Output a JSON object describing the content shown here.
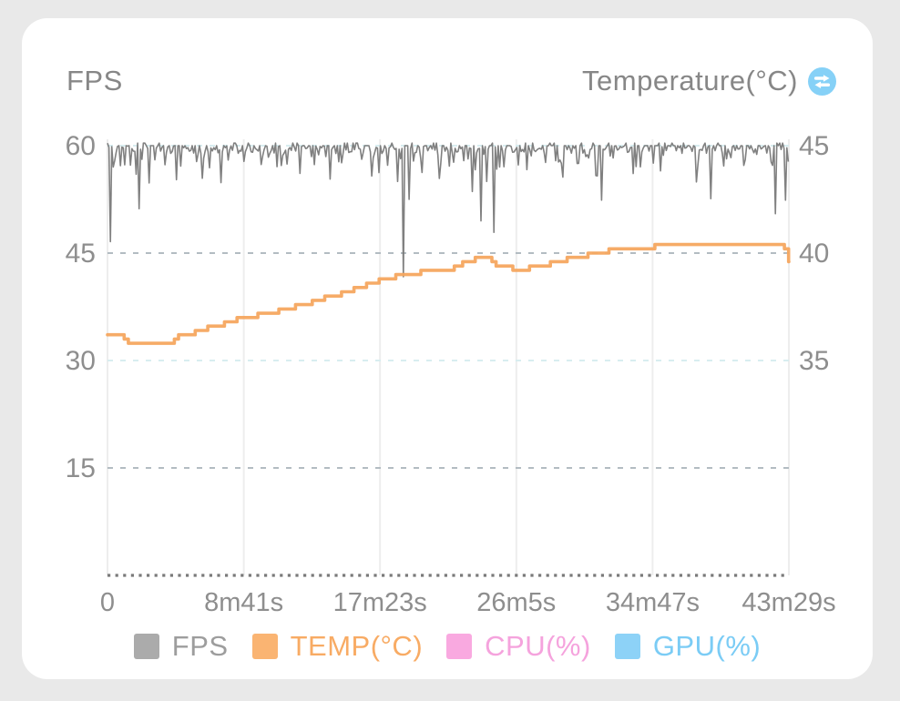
{
  "header": {
    "left_axis_title": "FPS",
    "right_axis_title": "Temperature(°C)"
  },
  "icons": {
    "swap_axis_icon": {
      "name": "swap-horizontal-icon",
      "bg_color": "#86d1f7",
      "glyph_color": "#ffffff"
    }
  },
  "colors": {
    "page_bg": "#e9e9e9",
    "card_bg": "#ffffff",
    "title_text": "#878787",
    "axis_text": "#8e8e8e",
    "grid_left_dashed": "#b3bcc2",
    "grid_right_dashed": "#d8edf0",
    "grid_vertical": "#ededed",
    "baseline_dots": "#7a7a7a",
    "fps_line": "#757575",
    "temp_line": "#f6a75f"
  },
  "legend": {
    "items": [
      {
        "label": "FPS",
        "swatch_color": "#ababab",
        "text_color": "#9d9d9d"
      },
      {
        "label": "TEMP(°C)",
        "swatch_color": "#fab472",
        "text_color": "#f8ab64"
      },
      {
        "label": "CPU(%)",
        "swatch_color": "#f9a9e0",
        "text_color": "#f5a3dd"
      },
      {
        "label": "GPU(%)",
        "swatch_color": "#8dd2f7",
        "text_color": "#7bccf5"
      }
    ]
  },
  "chart_data": {
    "type": "line",
    "title": "",
    "duration_seconds": 2609,
    "x_ticks": [
      {
        "label": "0",
        "t": 0
      },
      {
        "label": "8m41s",
        "t": 521.8
      },
      {
        "label": "17m23s",
        "t": 1043.6
      },
      {
        "label": "26m5s",
        "t": 1565.4
      },
      {
        "label": "34m47s",
        "t": 2087.2
      },
      {
        "label": "43m29s",
        "t": 2609
      }
    ],
    "left_axis": {
      "title": "FPS",
      "ticks": [
        60,
        45,
        30,
        15
      ],
      "min": 0,
      "max": 60,
      "grid_values": [
        60,
        45,
        30,
        15
      ]
    },
    "right_axis": {
      "title": "Temperature(°C)",
      "ticks": [
        45,
        40,
        35
      ],
      "grid_values": [
        45,
        35
      ],
      "align_value_40_with_left": 45,
      "units_per_left_15": 5
    },
    "grid": {
      "horizontal_dashed": true,
      "vertical_light": true,
      "baseline_dotted": true
    },
    "legend_position": "bottom",
    "series": [
      {
        "name": "FPS",
        "axis": "left",
        "color": "#757575",
        "style": "noisy-line",
        "baseline_value": 60,
        "noise": {
          "seed": 42,
          "step_seconds": 5.5
        },
        "dips": [
          [
            12,
            46.6
          ],
          [
            119,
            51.2
          ],
          [
            157,
            54.8
          ],
          [
            1113,
            55.0
          ],
          [
            1134,
            41.7
          ],
          [
            1155,
            52.5
          ],
          [
            1399,
            53.6
          ],
          [
            1430,
            49.5
          ],
          [
            1454,
            55.0
          ],
          [
            1482,
            47.9
          ],
          [
            1890,
            52.4
          ],
          [
            2309,
            52.6
          ],
          [
            2560,
            50.5
          ],
          [
            2595,
            52.4
          ]
        ]
      },
      {
        "name": "TEMP(°C)",
        "axis": "right",
        "color": "#f6a75f",
        "style": "stepped-line",
        "step_quantize": 0.2,
        "sample_seconds": 16,
        "points": [
          [
            0,
            36.3
          ],
          [
            42,
            36.25
          ],
          [
            70,
            36.0
          ],
          [
            94,
            35.75
          ],
          [
            227,
            35.75
          ],
          [
            269,
            36.1
          ],
          [
            321,
            36.25
          ],
          [
            408,
            36.6
          ],
          [
            513,
            37.0
          ],
          [
            635,
            37.25
          ],
          [
            739,
            37.6
          ],
          [
            861,
            38.0
          ],
          [
            966,
            38.4
          ],
          [
            1043,
            38.75
          ],
          [
            1140,
            39.0
          ],
          [
            1228,
            39.15
          ],
          [
            1315,
            39.25
          ],
          [
            1374,
            39.6
          ],
          [
            1402,
            39.75
          ],
          [
            1465,
            39.75
          ],
          [
            1489,
            39.35
          ],
          [
            1594,
            39.25
          ],
          [
            1681,
            39.5
          ],
          [
            1768,
            39.75
          ],
          [
            1873,
            40.0
          ],
          [
            1977,
            40.25
          ],
          [
            2082,
            40.3
          ],
          [
            2169,
            40.5
          ],
          [
            2274,
            40.4
          ],
          [
            2378,
            40.5
          ],
          [
            2483,
            40.4
          ],
          [
            2581,
            40.4
          ],
          [
            2595,
            40.15
          ],
          [
            2609,
            39.65
          ]
        ]
      },
      {
        "name": "CPU(%)",
        "axis": "right",
        "color": "#f9a9e0",
        "style": "line",
        "points": []
      },
      {
        "name": "GPU(%)",
        "axis": "right",
        "color": "#8dd2f7",
        "style": "line",
        "points": []
      }
    ]
  }
}
